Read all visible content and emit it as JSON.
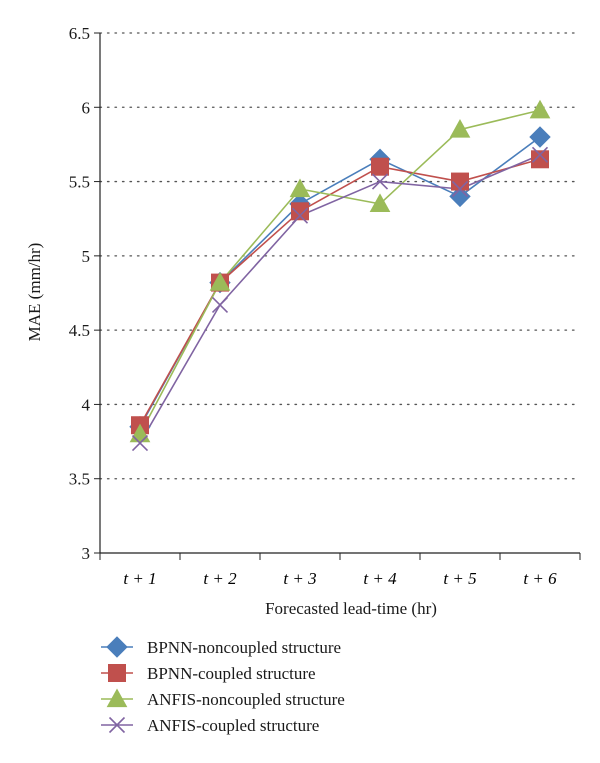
{
  "chart_data": {
    "type": "line",
    "title": "",
    "xlabel": "Forecasted lead-time (hr)",
    "ylabel": "MAE (mm/hr)",
    "categories": [
      "t + 1",
      "t + 2",
      "t + 3",
      "t + 4",
      "t + 5",
      "t + 6"
    ],
    "ylim": [
      3,
      6.5
    ],
    "yticks": [
      "3",
      "3.5",
      "4",
      "4.5",
      "5",
      "5.5",
      "6",
      "6.5"
    ],
    "grid": "horizontal dotted",
    "legend_position": "bottom",
    "series": [
      {
        "name": "BPNN-noncoupled structure",
        "marker": "diamond",
        "color": "#4a7ebb",
        "values": [
          3.85,
          4.82,
          5.35,
          5.65,
          5.4,
          5.8
        ]
      },
      {
        "name": "BPNN-coupled structure",
        "marker": "square",
        "color": "#c0504d",
        "values": [
          3.86,
          4.82,
          5.3,
          5.6,
          5.5,
          5.65
        ]
      },
      {
        "name": "ANFIS-noncoupled structure",
        "marker": "triangle",
        "color": "#9bbb59",
        "values": [
          3.8,
          4.82,
          5.45,
          5.35,
          5.85,
          5.98
        ]
      },
      {
        "name": "ANFIS-coupled structure",
        "marker": "x",
        "color": "#8064a2",
        "values": [
          3.74,
          4.67,
          5.27,
          5.5,
          5.45,
          5.68
        ]
      }
    ]
  }
}
